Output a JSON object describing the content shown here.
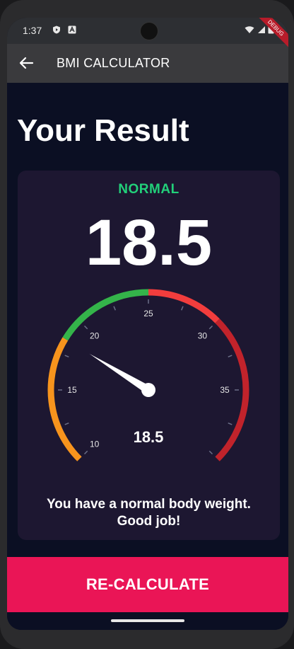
{
  "status_bar": {
    "time": "1:37"
  },
  "app_bar": {
    "title": "BMI CALCULATOR",
    "debug_label": "DEBUG"
  },
  "page": {
    "heading": "Your Result"
  },
  "result": {
    "category": "NORMAL",
    "bmi": "18.5",
    "description_line1": "You have a normal body weight.",
    "description_line2": "Good job!"
  },
  "gauge": {
    "min": 10,
    "max": 40,
    "value": 18.5,
    "value_label": "18.5",
    "ticks": [
      10,
      15,
      20,
      25,
      30,
      35
    ],
    "ranges": [
      {
        "from": 10,
        "to": 18.5,
        "color": "#f7941d"
      },
      {
        "from": 18.5,
        "to": 25,
        "color": "#34b44a"
      },
      {
        "from": 25,
        "to": 30,
        "color": "#f23d3d"
      },
      {
        "from": 30,
        "to": 40,
        "color": "#c1232b"
      }
    ],
    "start_angle": 225,
    "sweep": 270
  },
  "actions": {
    "recalculate_label": "RE-CALCULATE"
  },
  "colors": {
    "accent": "#ea1556",
    "status": "#22d07a",
    "card": "#1d1731",
    "background": "#0b0f23"
  }
}
